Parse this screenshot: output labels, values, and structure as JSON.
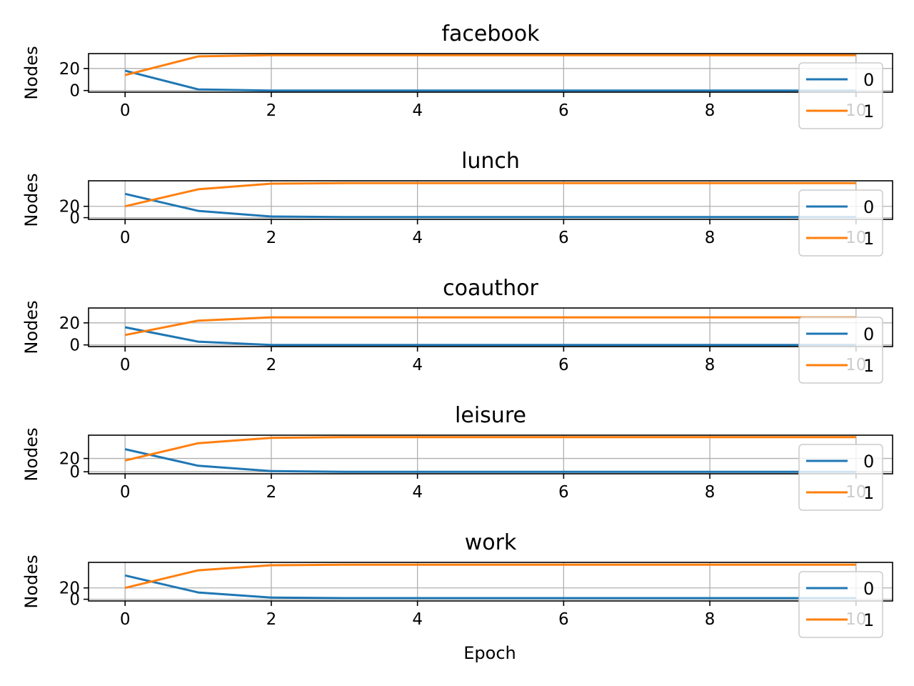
{
  "figure": {
    "xlabel": "Epoch",
    "ylabel": "Nodes",
    "colors": {
      "series_0": "#1f77b4",
      "series_1": "#ff7f0e",
      "grid": "#b0b0b0",
      "axes": "#000000"
    }
  },
  "chart_data": [
    {
      "type": "line",
      "title": "facebook",
      "xlabel": "",
      "ylabel": "Nodes",
      "x": [
        0,
        1,
        2,
        3,
        4,
        5,
        6,
        7,
        8,
        9,
        10
      ],
      "xlim": [
        -0.5,
        10.5
      ],
      "ylim": [
        -1.5,
        33.5
      ],
      "xticks": [
        0,
        2,
        4,
        6,
        8,
        10
      ],
      "yticks": [
        0,
        20
      ],
      "grid": true,
      "legend": "lower-right",
      "series": [
        {
          "name": "0",
          "color": "#1f77b4",
          "values": [
            18,
            1,
            0,
            0,
            0,
            0,
            0,
            0,
            0,
            0,
            0
          ]
        },
        {
          "name": "1",
          "color": "#ff7f0e",
          "values": [
            14,
            31,
            32,
            32,
            32,
            32,
            32,
            32,
            32,
            32,
            32
          ]
        }
      ]
    },
    {
      "type": "line",
      "title": "lunch",
      "xlabel": "",
      "ylabel": "Nodes",
      "x": [
        0,
        1,
        2,
        3,
        4,
        5,
        6,
        7,
        8,
        9,
        10
      ],
      "xlim": [
        -0.5,
        10.5
      ],
      "ylim": [
        -3,
        65
      ],
      "xticks": [
        0,
        2,
        4,
        6,
        8,
        10
      ],
      "yticks": [
        0,
        20
      ],
      "grid": true,
      "legend": "lower-right",
      "series": [
        {
          "name": "0",
          "color": "#1f77b4",
          "values": [
            42,
            12,
            2,
            1,
            1,
            1,
            1,
            1,
            1,
            1,
            1
          ]
        },
        {
          "name": "1",
          "color": "#ff7f0e",
          "values": [
            20,
            50,
            60,
            61,
            61,
            61,
            61,
            61,
            61,
            61,
            61
          ]
        }
      ]
    },
    {
      "type": "line",
      "title": "coauthor",
      "xlabel": "",
      "ylabel": "Nodes",
      "x": [
        0,
        1,
        2,
        3,
        4,
        5,
        6,
        7,
        8,
        9,
        10
      ],
      "xlim": [
        -0.5,
        10.5
      ],
      "ylim": [
        -1.5,
        33.5
      ],
      "xticks": [
        0,
        2,
        4,
        6,
        8,
        10
      ],
      "yticks": [
        0,
        20
      ],
      "grid": true,
      "legend": "lower-right",
      "series": [
        {
          "name": "0",
          "color": "#1f77b4",
          "values": [
            16,
            3,
            0,
            0,
            0,
            0,
            0,
            0,
            0,
            0,
            0
          ]
        },
        {
          "name": "1",
          "color": "#ff7f0e",
          "values": [
            9,
            22,
            25,
            25,
            25,
            25,
            25,
            25,
            25,
            25,
            25
          ]
        }
      ]
    },
    {
      "type": "line",
      "title": "leisure",
      "xlabel": "",
      "ylabel": "Nodes",
      "x": [
        0,
        1,
        2,
        3,
        4,
        5,
        6,
        7,
        8,
        9,
        10
      ],
      "xlim": [
        -0.5,
        10.5
      ],
      "ylim": [
        -3,
        55
      ],
      "xticks": [
        0,
        2,
        4,
        6,
        8,
        10
      ],
      "yticks": [
        0,
        20
      ],
      "grid": true,
      "legend": "lower-right",
      "series": [
        {
          "name": "0",
          "color": "#1f77b4",
          "values": [
            34,
            9,
            1,
            0,
            0,
            0,
            0,
            0,
            0,
            0,
            0
          ]
        },
        {
          "name": "1",
          "color": "#ff7f0e",
          "values": [
            17,
            43,
            51,
            52,
            52,
            52,
            52,
            52,
            52,
            52,
            52
          ]
        }
      ]
    },
    {
      "type": "line",
      "title": "work",
      "xlabel": "Epoch",
      "ylabel": "Nodes",
      "x": [
        0,
        1,
        2,
        3,
        4,
        5,
        6,
        7,
        8,
        9,
        10
      ],
      "xlim": [
        -0.5,
        10.5
      ],
      "ylim": [
        -3,
        65
      ],
      "xticks": [
        0,
        2,
        4,
        6,
        8,
        10
      ],
      "yticks": [
        0,
        20
      ],
      "grid": true,
      "legend": "lower-right",
      "series": [
        {
          "name": "0",
          "color": "#1f77b4",
          "values": [
            42,
            12,
            3,
            2,
            2,
            2,
            2,
            2,
            2,
            2,
            2
          ]
        },
        {
          "name": "1",
          "color": "#ff7f0e",
          "values": [
            20,
            51,
            60,
            61,
            61,
            61,
            61,
            61,
            61,
            61,
            61
          ]
        }
      ]
    }
  ]
}
